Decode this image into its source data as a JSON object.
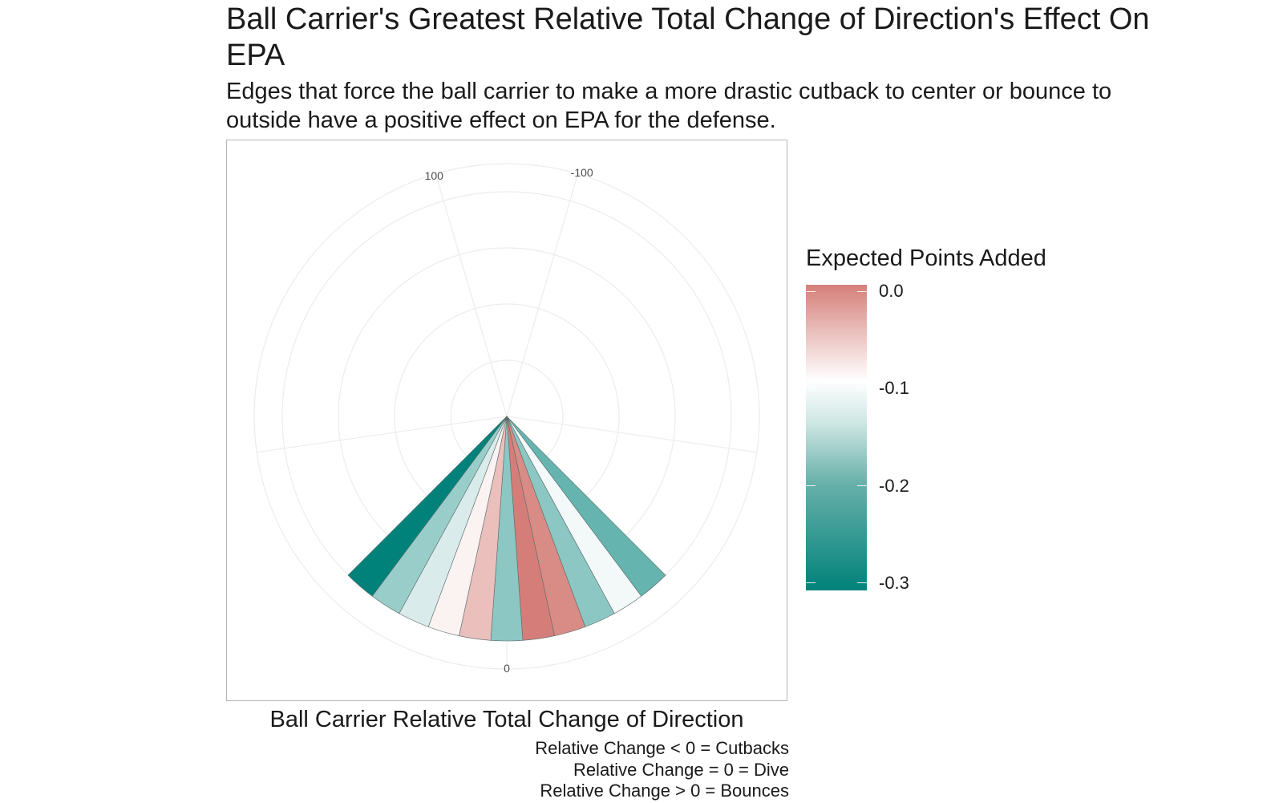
{
  "title": "Ball Carrier's Greatest Relative Total Change of Direction's Effect On EPA",
  "subtitle": "Edges that force the ball carrier to make a more drastic cutback to center or bounce to outside have a positive effect on EPA for the defense.",
  "x_axis_label": "Ball Carrier Relative Total Change of Direction",
  "caption": [
    "Relative Change < 0 = Cutbacks",
    "Relative Change = 0 = Dive",
    "Relative Change > 0 = Bounces"
  ],
  "legend": {
    "title": "Expected Points Added",
    "labels": [
      "0.0",
      "-0.1",
      "-0.2",
      "-0.3"
    ],
    "values": [
      0.0,
      -0.1,
      -0.2,
      -0.3
    ],
    "colors": {
      "high": "#d57e79",
      "mid": "#ffffff",
      "low": "#00827a"
    }
  },
  "chart_data": {
    "type": "bar",
    "coordinate_system": "polar",
    "x_ticks": [
      "0",
      "-100",
      "100"
    ],
    "x_tick_values": [
      0,
      -100,
      100
    ],
    "xlim": [
      -110,
      110
    ],
    "ylim": [
      0,
      1.1
    ],
    "grid": true,
    "legend_position": "right",
    "x": [
      -25,
      -20,
      -15,
      -10,
      -5,
      0,
      5,
      10,
      15,
      20,
      25
    ],
    "values": [
      1,
      1,
      1,
      1,
      1,
      1,
      1,
      1,
      1,
      1,
      1
    ],
    "epa": [
      -0.22,
      -0.11,
      -0.19,
      -0.01,
      0.0,
      -0.19,
      -0.05,
      -0.09,
      -0.13,
      -0.18,
      -0.3
    ]
  }
}
